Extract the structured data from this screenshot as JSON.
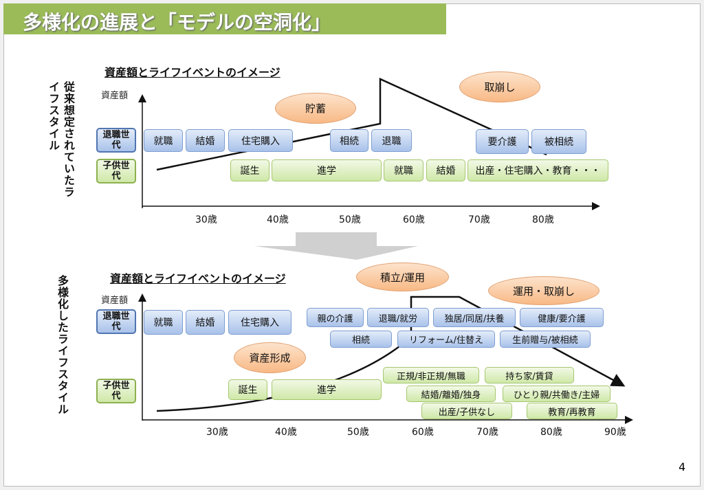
{
  "title": "多様化の進展と「モデルの空洞化」",
  "page_number": "4",
  "top": {
    "side_label": "従来想定されていたライフスタイル",
    "header": "資産額とライフイベントのイメージ",
    "y_label": "資産額",
    "retired_label": "退職世代",
    "child_label": "子供世代",
    "ovals": [
      "貯蓄",
      "取崩し"
    ],
    "retired_events": [
      "就職",
      "結婚",
      "住宅購入",
      "相続",
      "退職",
      "要介護",
      "被相続"
    ],
    "child_events": [
      "誕生",
      "進学",
      "就職",
      "結婚",
      "出産・住宅購入・教育・・・"
    ],
    "ages": [
      "30歳",
      "40歳",
      "50歳",
      "60歳",
      "70歳",
      "80歳"
    ]
  },
  "bottom": {
    "side_label": "多様化したライフスタイル",
    "header": "資産額とライフイベントのイメージ",
    "y_label": "資産額",
    "retired_label": "退職世代",
    "child_label": "子供世代",
    "ovals": [
      "積立/運用",
      "運用・取崩し",
      "資産形成"
    ],
    "retired_events": [
      "就職",
      "結婚",
      "住宅購入",
      "親の介護",
      "退職/就労",
      "独居/同居/扶養",
      "健康/要介護",
      "相続",
      "リフォーム/住替え",
      "生前贈与/被相続"
    ],
    "child_events": [
      "誕生",
      "進学",
      "正規/非正規/無職",
      "持ち家/賃貸",
      "結婚/離婚/独身",
      "ひとり親/共働き/主婦",
      "出産/子供なし",
      "教育/再教育"
    ],
    "ages": [
      "30歳",
      "40歳",
      "50歳",
      "60歳",
      "70歳",
      "80歳",
      "90歳"
    ]
  }
}
